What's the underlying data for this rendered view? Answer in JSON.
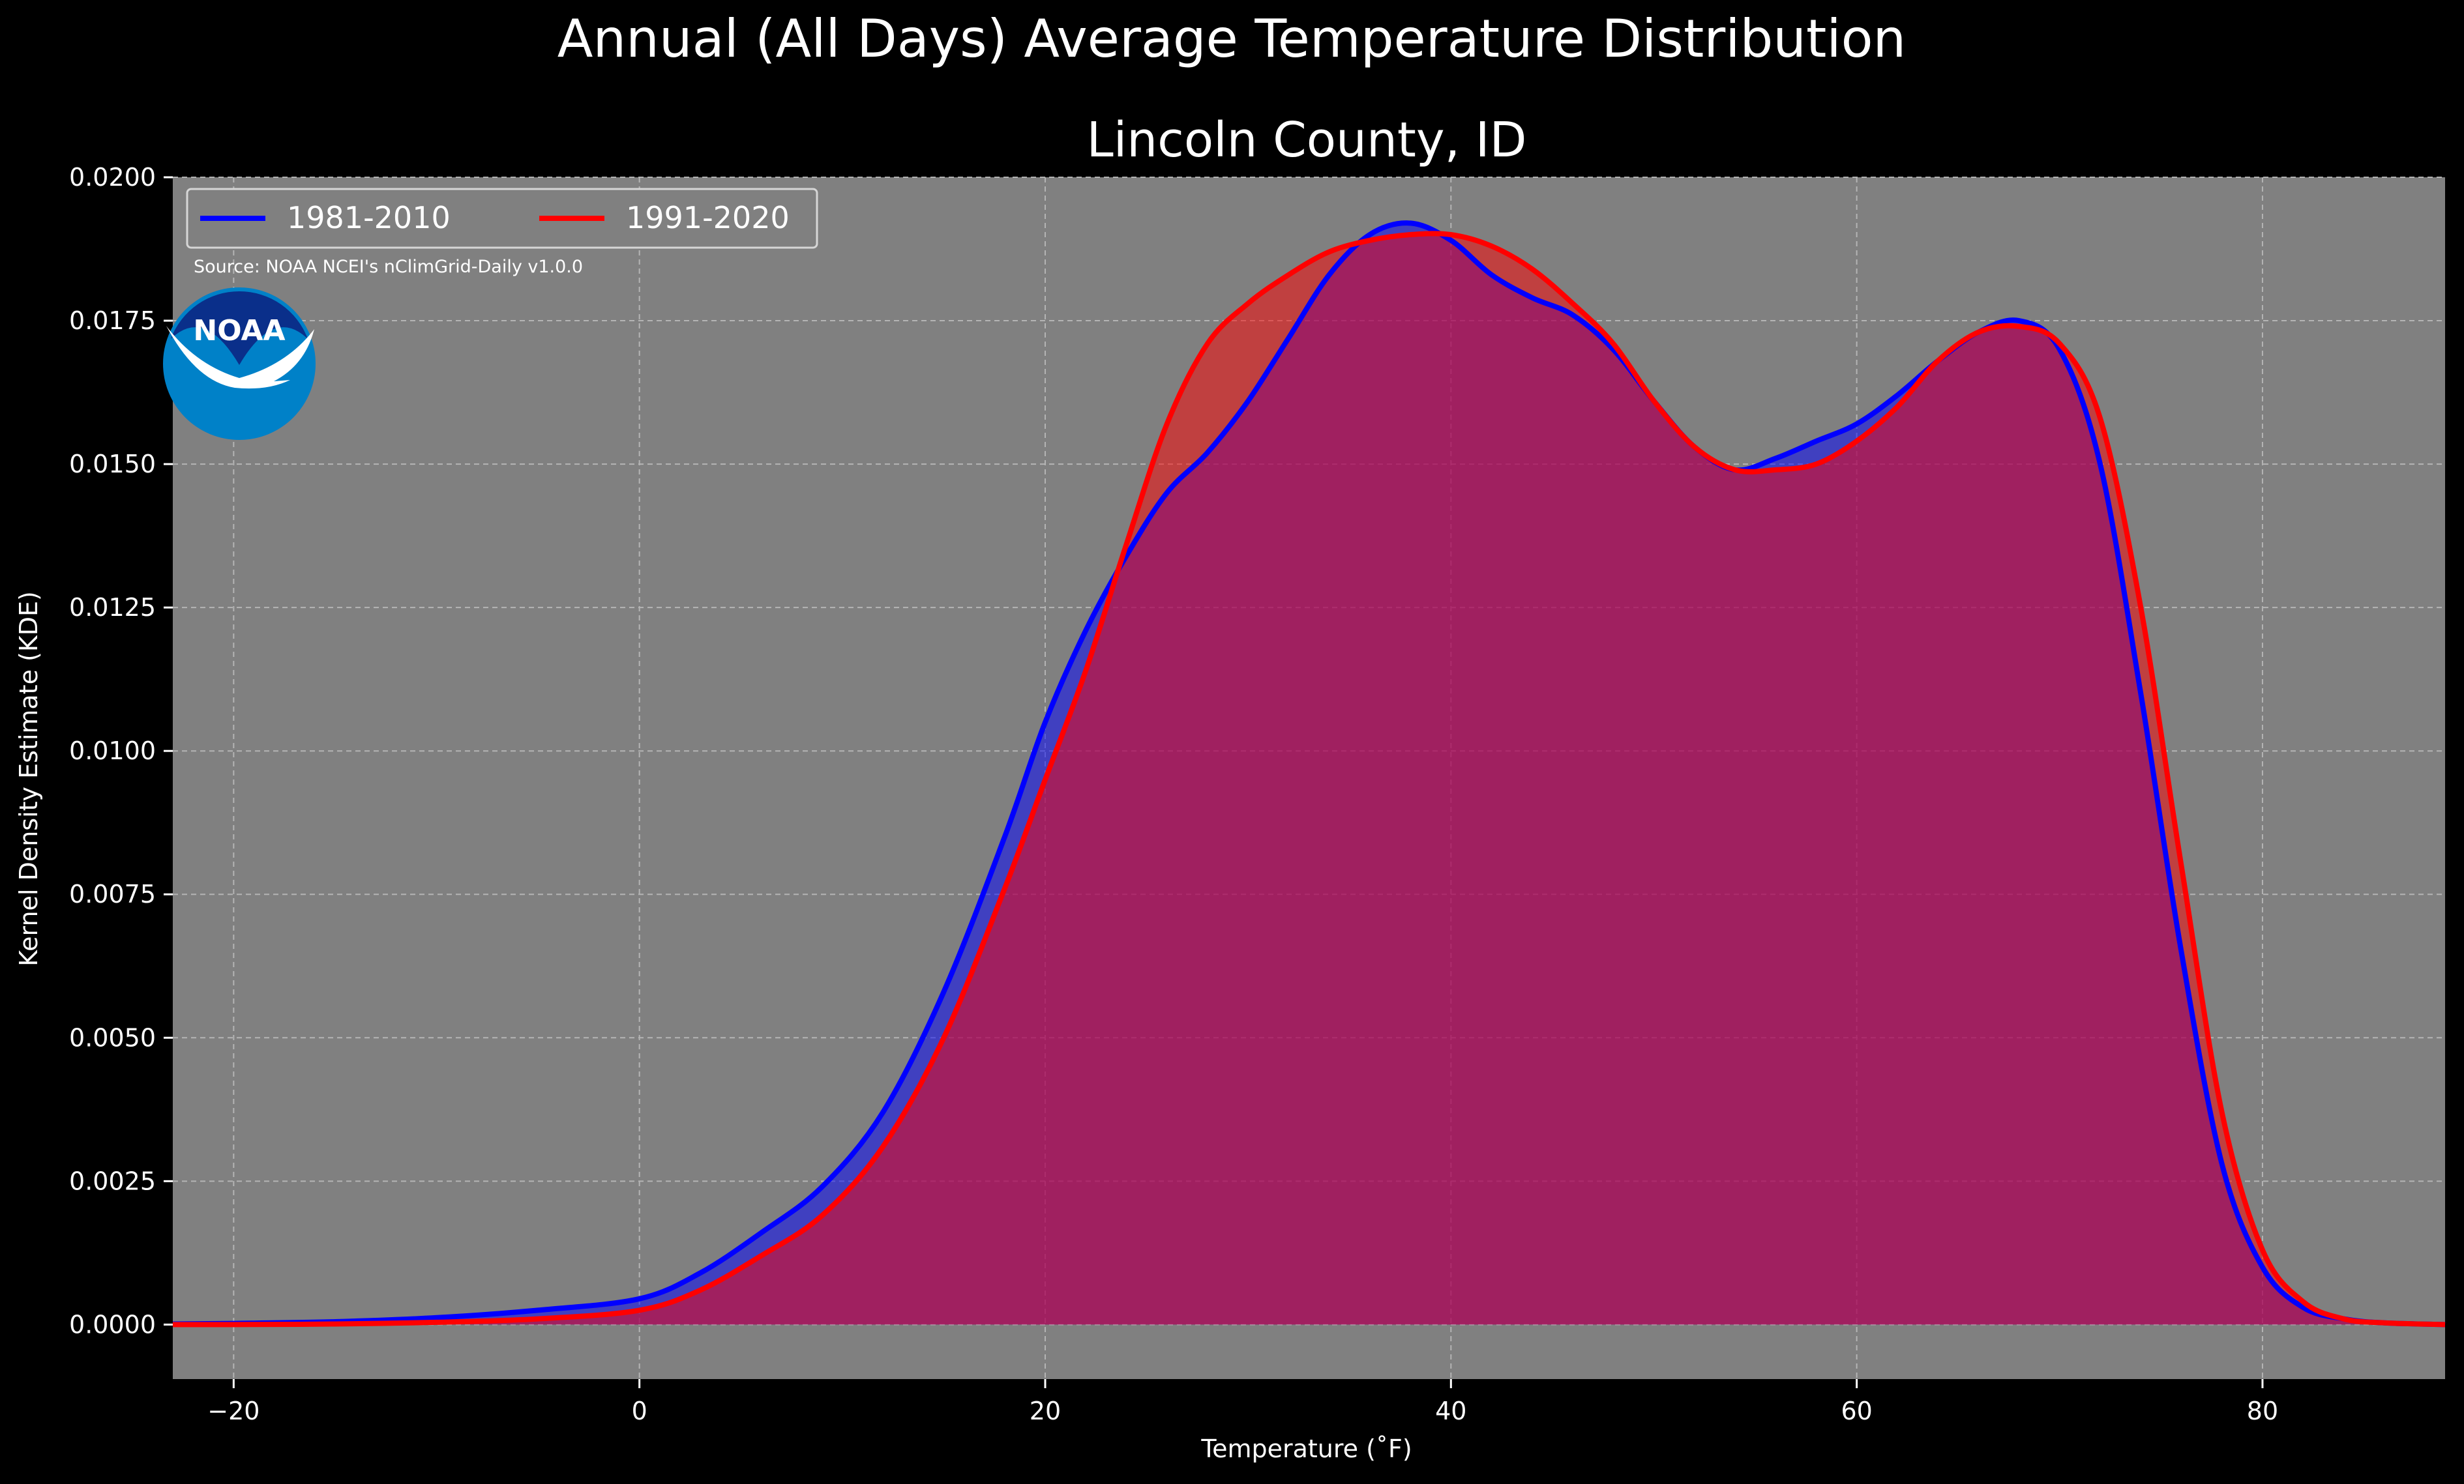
{
  "suptitle": "Annual (All Days) Average Temperature Distribution",
  "source": "Source: NOAA NCEI's nClimGrid-Daily v1.0.0",
  "logo": {
    "icon": "noaa-logo-icon",
    "text": "NOAA",
    "circle_color": "#0081C8",
    "inner_color": "#0A2F8A"
  },
  "colors": {
    "figure_bg": "#000000",
    "axes_bg": "#808080",
    "text": "#FFFFFF",
    "grid": "#B4B4B4"
  },
  "chart_data": {
    "type": "area",
    "title": "Lincoln County, ID",
    "xlabel": "Temperature (˚F)",
    "ylabel": "Kernel Density Estimate (KDE)",
    "xlim": [
      -23,
      89
    ],
    "ylim": [
      -0.00095,
      0.02
    ],
    "xticks": [
      {
        "value": -20,
        "label": "−20"
      },
      {
        "value": 0,
        "label": "0"
      },
      {
        "value": 20,
        "label": "20"
      },
      {
        "value": 40,
        "label": "40"
      },
      {
        "value": 60,
        "label": "60"
      },
      {
        "value": 80,
        "label": "80"
      }
    ],
    "yticks": [
      {
        "value": 0,
        "label": "0.0000"
      },
      {
        "value": 0.0025,
        "label": "0.0025"
      },
      {
        "value": 0.005,
        "label": "0.0050"
      },
      {
        "value": 0.0075,
        "label": "0.0075"
      },
      {
        "value": 0.01,
        "label": "0.0100"
      },
      {
        "value": 0.0125,
        "label": "0.0125"
      },
      {
        "value": 0.015,
        "label": "0.0150"
      },
      {
        "value": 0.0175,
        "label": "0.0175"
      },
      {
        "value": 0.02,
        "label": "0.0200"
      }
    ],
    "grid": true,
    "legend_position": "top-left",
    "series": [
      {
        "name": "1981-2010",
        "color": "#0000FF",
        "fill": "#0000FF",
        "x": [
          -23,
          -20,
          -15,
          -10,
          -5,
          0,
          3,
          6,
          9,
          12,
          15,
          18,
          20,
          22,
          24,
          26,
          28,
          30,
          32,
          34,
          36,
          38,
          40,
          42,
          44,
          46,
          48,
          50,
          52,
          54,
          56,
          58,
          60,
          62,
          64,
          66,
          68,
          70,
          72,
          74,
          76,
          78,
          80,
          82,
          84,
          86,
          89
        ],
        "y": [
          1e-05,
          2e-05,
          5e-05,
          0.00012,
          0.00025,
          0.00045,
          0.0009,
          0.0016,
          0.0024,
          0.0037,
          0.0058,
          0.0085,
          0.0105,
          0.0121,
          0.0134,
          0.0145,
          0.0152,
          0.0161,
          0.0172,
          0.0183,
          0.019,
          0.0192,
          0.0189,
          0.0183,
          0.0179,
          0.0176,
          0.017,
          0.0161,
          0.0153,
          0.0149,
          0.0151,
          0.0154,
          0.0157,
          0.0162,
          0.0168,
          0.0173,
          0.0175,
          0.017,
          0.015,
          0.011,
          0.0065,
          0.0028,
          0.001,
          0.0003,
          0.0001,
          3e-05,
          0.0
        ]
      },
      {
        "name": "1991-2020",
        "color": "#FF0000",
        "fill": "#FF0000",
        "x": [
          -23,
          -20,
          -15,
          -10,
          -5,
          0,
          3,
          6,
          9,
          12,
          15,
          18,
          20,
          22,
          24,
          26,
          28,
          30,
          32,
          34,
          36,
          38,
          40,
          42,
          44,
          46,
          48,
          50,
          52,
          54,
          56,
          58,
          60,
          62,
          64,
          66,
          68,
          70,
          72,
          74,
          76,
          78,
          80,
          82,
          84,
          86,
          89
        ],
        "y": [
          0.0,
          0.0,
          1e-05,
          4e-05,
          0.0001,
          0.00025,
          0.0006,
          0.0012,
          0.0019,
          0.0031,
          0.005,
          0.0076,
          0.0095,
          0.0114,
          0.0136,
          0.0157,
          0.0171,
          0.0178,
          0.0183,
          0.0187,
          0.0189,
          0.019,
          0.019,
          0.0188,
          0.0184,
          0.0178,
          0.0171,
          0.0161,
          0.0153,
          0.0149,
          0.0149,
          0.015,
          0.0154,
          0.016,
          0.0168,
          0.0173,
          0.0174,
          0.0171,
          0.0158,
          0.0125,
          0.008,
          0.0037,
          0.0013,
          0.0004,
          0.0001,
          3e-05,
          0.0
        ]
      }
    ]
  }
}
